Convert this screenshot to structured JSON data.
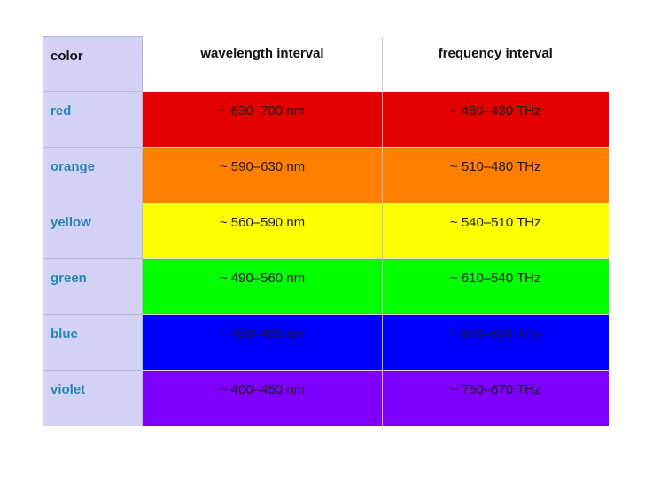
{
  "table": {
    "headers": {
      "color": "color",
      "wavelength": "wavelength interval",
      "frequency": "frequency interval"
    },
    "rows": [
      {
        "name": "red",
        "wavelength": "~ 630–700 nm",
        "frequency": "~ 480–430 THz",
        "fill": "#e20000"
      },
      {
        "name": "orange",
        "wavelength": "~ 590–630 nm",
        "frequency": "~ 510–480 THz",
        "fill": "#ff7f00"
      },
      {
        "name": "yellow",
        "wavelength": "~ 560–590 nm",
        "frequency": "~ 540–510 THz",
        "fill": "#ffff00"
      },
      {
        "name": "green",
        "wavelength": "~ 490–560 nm",
        "frequency": "~ 610–540 THz",
        "fill": "#00ff00"
      },
      {
        "name": "blue",
        "wavelength": "~ 450–490 nm",
        "frequency": "~ 670–610 THz",
        "fill": "#0000ff"
      },
      {
        "name": "violet",
        "wavelength": "~ 400–450 nm",
        "frequency": "~ 750–670 THz",
        "fill": "#7f00ff"
      }
    ]
  },
  "colors": {
    "name_column_bg": "#d2d2f6",
    "name_text": "#2a86b4"
  }
}
